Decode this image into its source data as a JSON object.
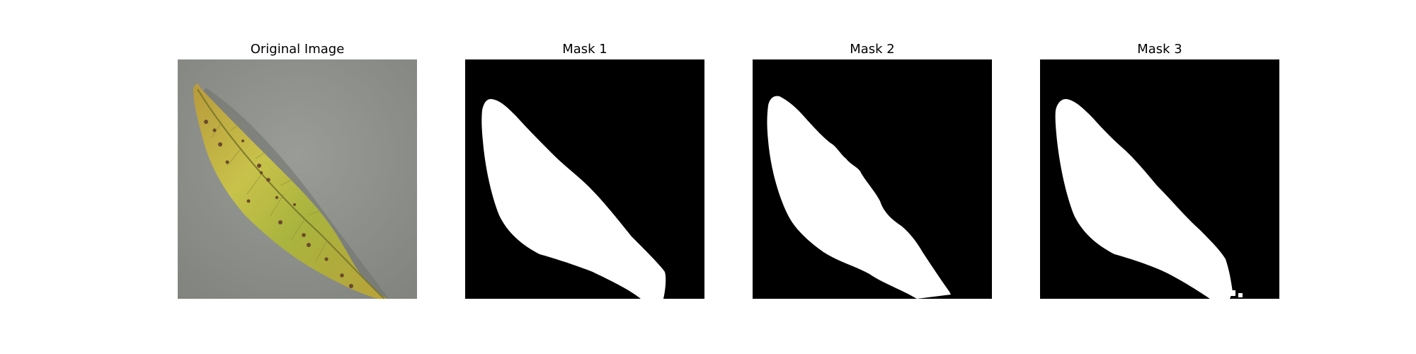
{
  "panels": [
    {
      "title": "Original Image",
      "image": "leaf-photo"
    },
    {
      "title": "Mask 1",
      "image": "mask-1"
    },
    {
      "title": "Mask 2",
      "image": "mask-2"
    },
    {
      "title": "Mask 3",
      "image": "mask-3"
    }
  ],
  "colors": {
    "background": "#ffffff",
    "photo_background": "#8c8e8a",
    "leaf_yellow": "#c4c04a",
    "leaf_green": "#a7b43f",
    "leaf_spot": "#6b4a2a",
    "mask_background": "#000000",
    "mask_foreground": "#ffffff"
  }
}
